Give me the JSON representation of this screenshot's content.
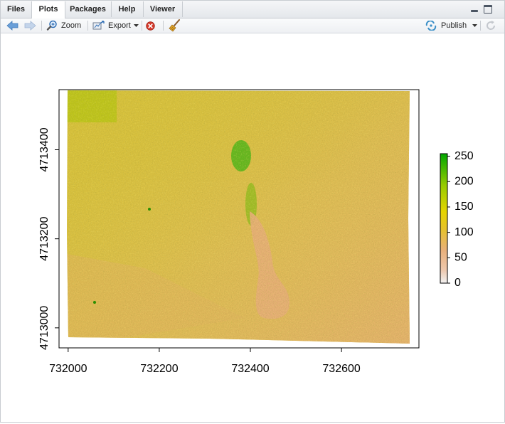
{
  "tabs": [
    {
      "label": "Files"
    },
    {
      "label": "Plots"
    },
    {
      "label": "Packages"
    },
    {
      "label": "Help"
    },
    {
      "label": "Viewer"
    }
  ],
  "active_tab": "Plots",
  "toolbar": {
    "zoom_label": "Zoom",
    "export_label": "Export",
    "publish_label": "Publish",
    "icons": [
      "back-arrow-icon",
      "forward-arrow-icon",
      "zoom-icon",
      "export-icon",
      "remove-plot-icon",
      "broom-icon",
      "publish-icon",
      "refresh-icon"
    ]
  },
  "chart_data": {
    "type": "heatmap",
    "title": "",
    "xlabel": "",
    "ylabel": "",
    "x_ticks": [
      732000,
      732200,
      732400,
      732600
    ],
    "x_tick_labels": [
      "732000",
      "732200",
      "732400",
      "732600"
    ],
    "y_ticks": [
      4713000,
      4713200,
      4713400
    ],
    "y_tick_labels": [
      "4713000",
      "4713200",
      "4713400"
    ],
    "xlim": [
      731980,
      732770
    ],
    "ylim": [
      4712955,
      4713535
    ],
    "legend": {
      "ticks": [
        0,
        50,
        100,
        150,
        200,
        250
      ],
      "tick_labels": [
        "0",
        "50",
        "100",
        "150",
        "200",
        "250"
      ],
      "range": [
        0,
        255
      ],
      "colors": [
        "#f2f2f2",
        "#e9b07c",
        "#e6d400",
        "#00a600"
      ],
      "placement": "right"
    },
    "colors": {
      "background_raster": "#d8c23a",
      "low_values_region": "#e8ae78",
      "high_values_region": "#4ab516"
    }
  }
}
